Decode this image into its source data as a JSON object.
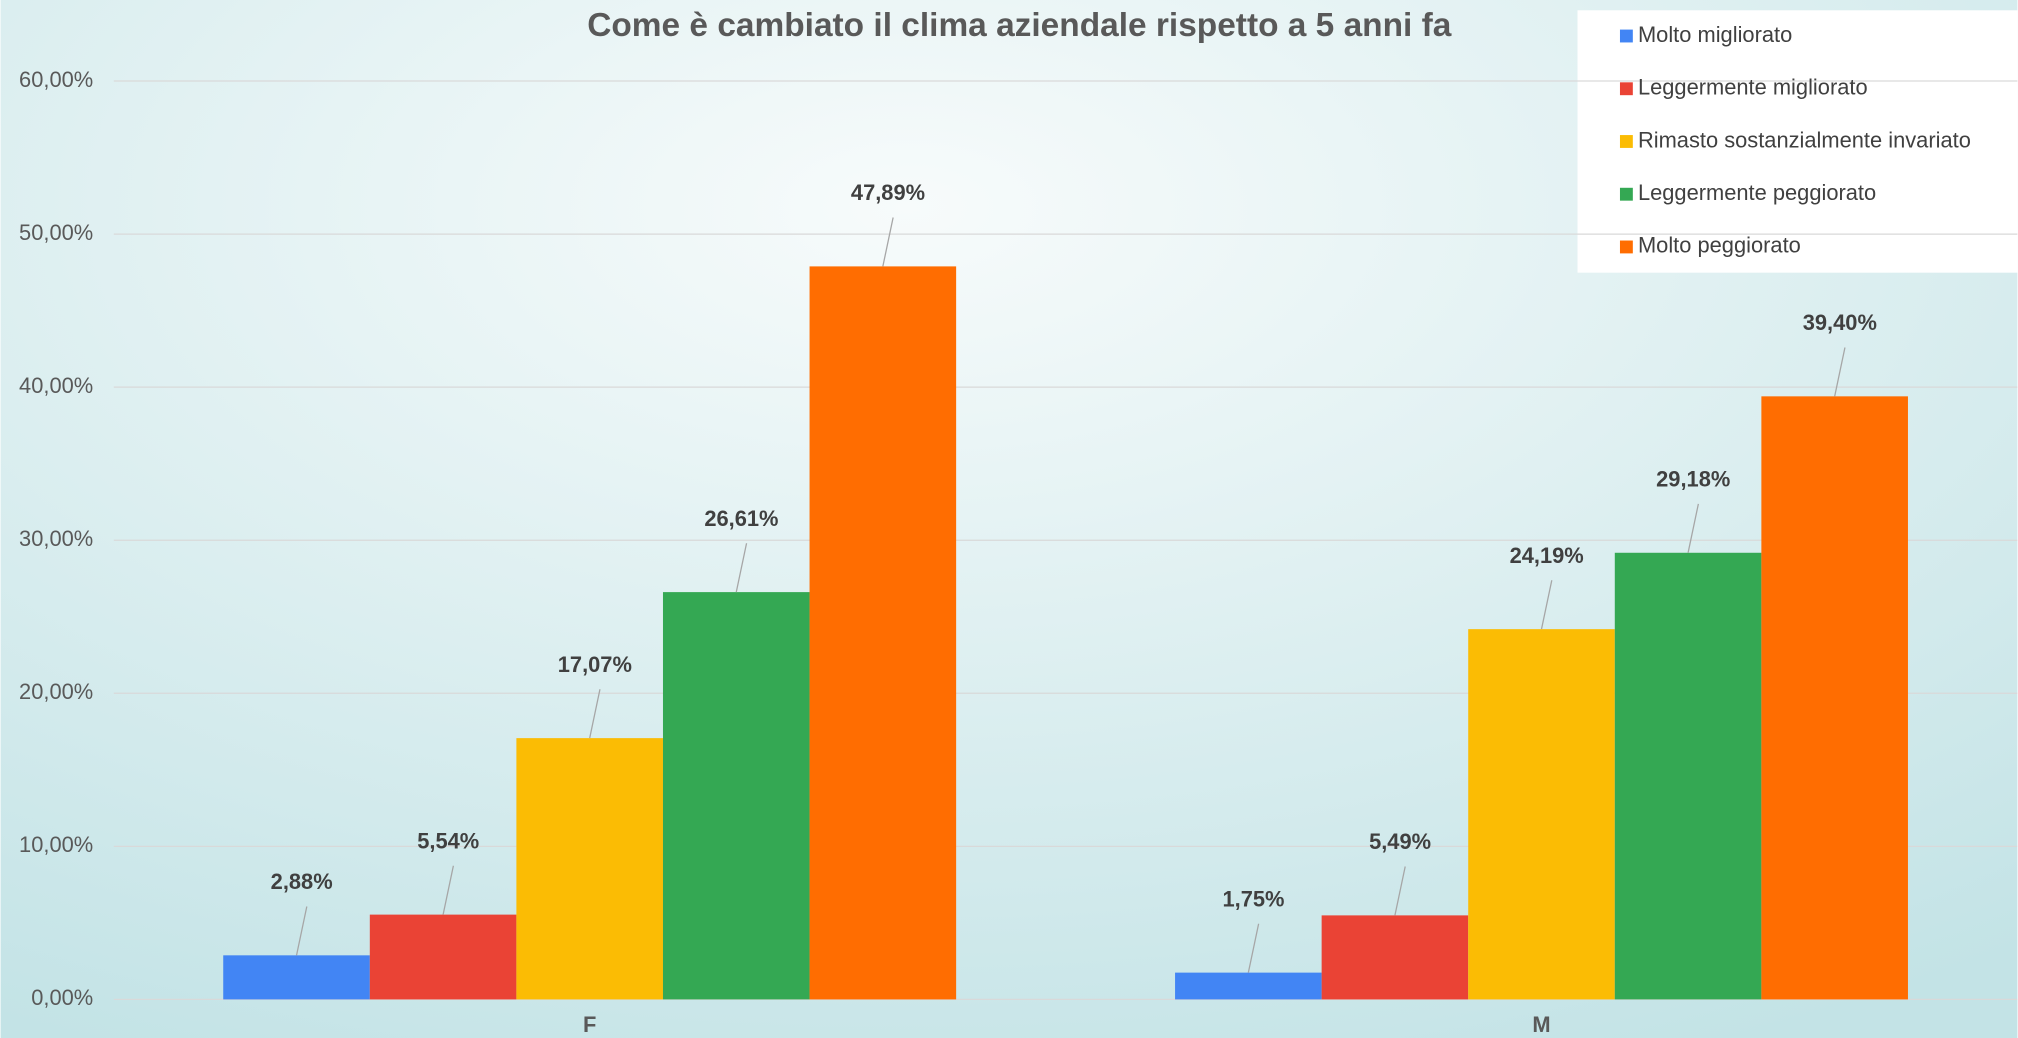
{
  "chart_data": {
    "type": "bar",
    "title": "Come è cambiato il clima aziendale rispetto a  5 anni fa",
    "categories": [
      "F",
      "M"
    ],
    "series": [
      {
        "name": "Molto migliorato",
        "color": "#4285f4",
        "values": [
          2.88,
          1.75
        ],
        "value_labels": [
          "2,88%",
          "1,75%"
        ]
      },
      {
        "name": "Leggermente migliorato",
        "color": "#ea4335",
        "values": [
          5.54,
          5.49
        ],
        "value_labels": [
          "5,54%",
          "5,49%"
        ]
      },
      {
        "name": "Rimasto sostanzialmente invariato",
        "color": "#fbbc04",
        "values": [
          17.07,
          24.19
        ],
        "value_labels": [
          "17,07%",
          "24,19%"
        ]
      },
      {
        "name": "Leggermente peggiorato",
        "color": "#34a853",
        "values": [
          26.61,
          29.18
        ],
        "value_labels": [
          "26,61%",
          "29,18%"
        ]
      },
      {
        "name": "Molto peggiorato",
        "color": "#ff6d01",
        "values": [
          47.89,
          39.4
        ],
        "value_labels": [
          "47,89%",
          "39,40%"
        ]
      }
    ],
    "ylim": [
      0,
      60
    ],
    "yticks": [
      {
        "value": 0,
        "label": "0,00%"
      },
      {
        "value": 10,
        "label": "10,00%"
      },
      {
        "value": 20,
        "label": "20,00%"
      },
      {
        "value": 30,
        "label": "30,00%"
      },
      {
        "value": 40,
        "label": "40,00%"
      },
      {
        "value": 50,
        "label": "50,00%"
      },
      {
        "value": 60,
        "label": "60,00%"
      }
    ],
    "grid": true,
    "legend": "top-right"
  }
}
